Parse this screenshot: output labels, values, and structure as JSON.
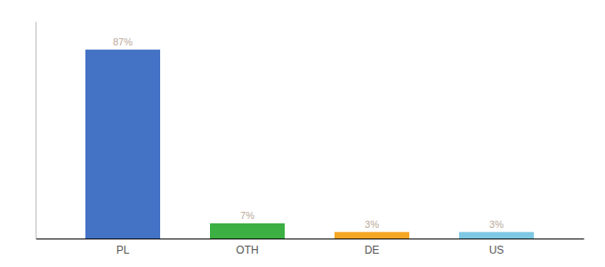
{
  "chart_data": {
    "type": "bar",
    "categories": [
      "PL",
      "OTH",
      "DE",
      "US"
    ],
    "values": [
      87,
      7,
      3,
      3
    ],
    "value_labels": [
      "87%",
      "7%",
      "3%",
      "3%"
    ],
    "colors": [
      "#4472c4",
      "#3cb043",
      "#f5a623",
      "#7ec8e3"
    ],
    "ylim": [
      0,
      100
    ],
    "data_labels": true,
    "tick_labels": "x",
    "grid": false
  }
}
